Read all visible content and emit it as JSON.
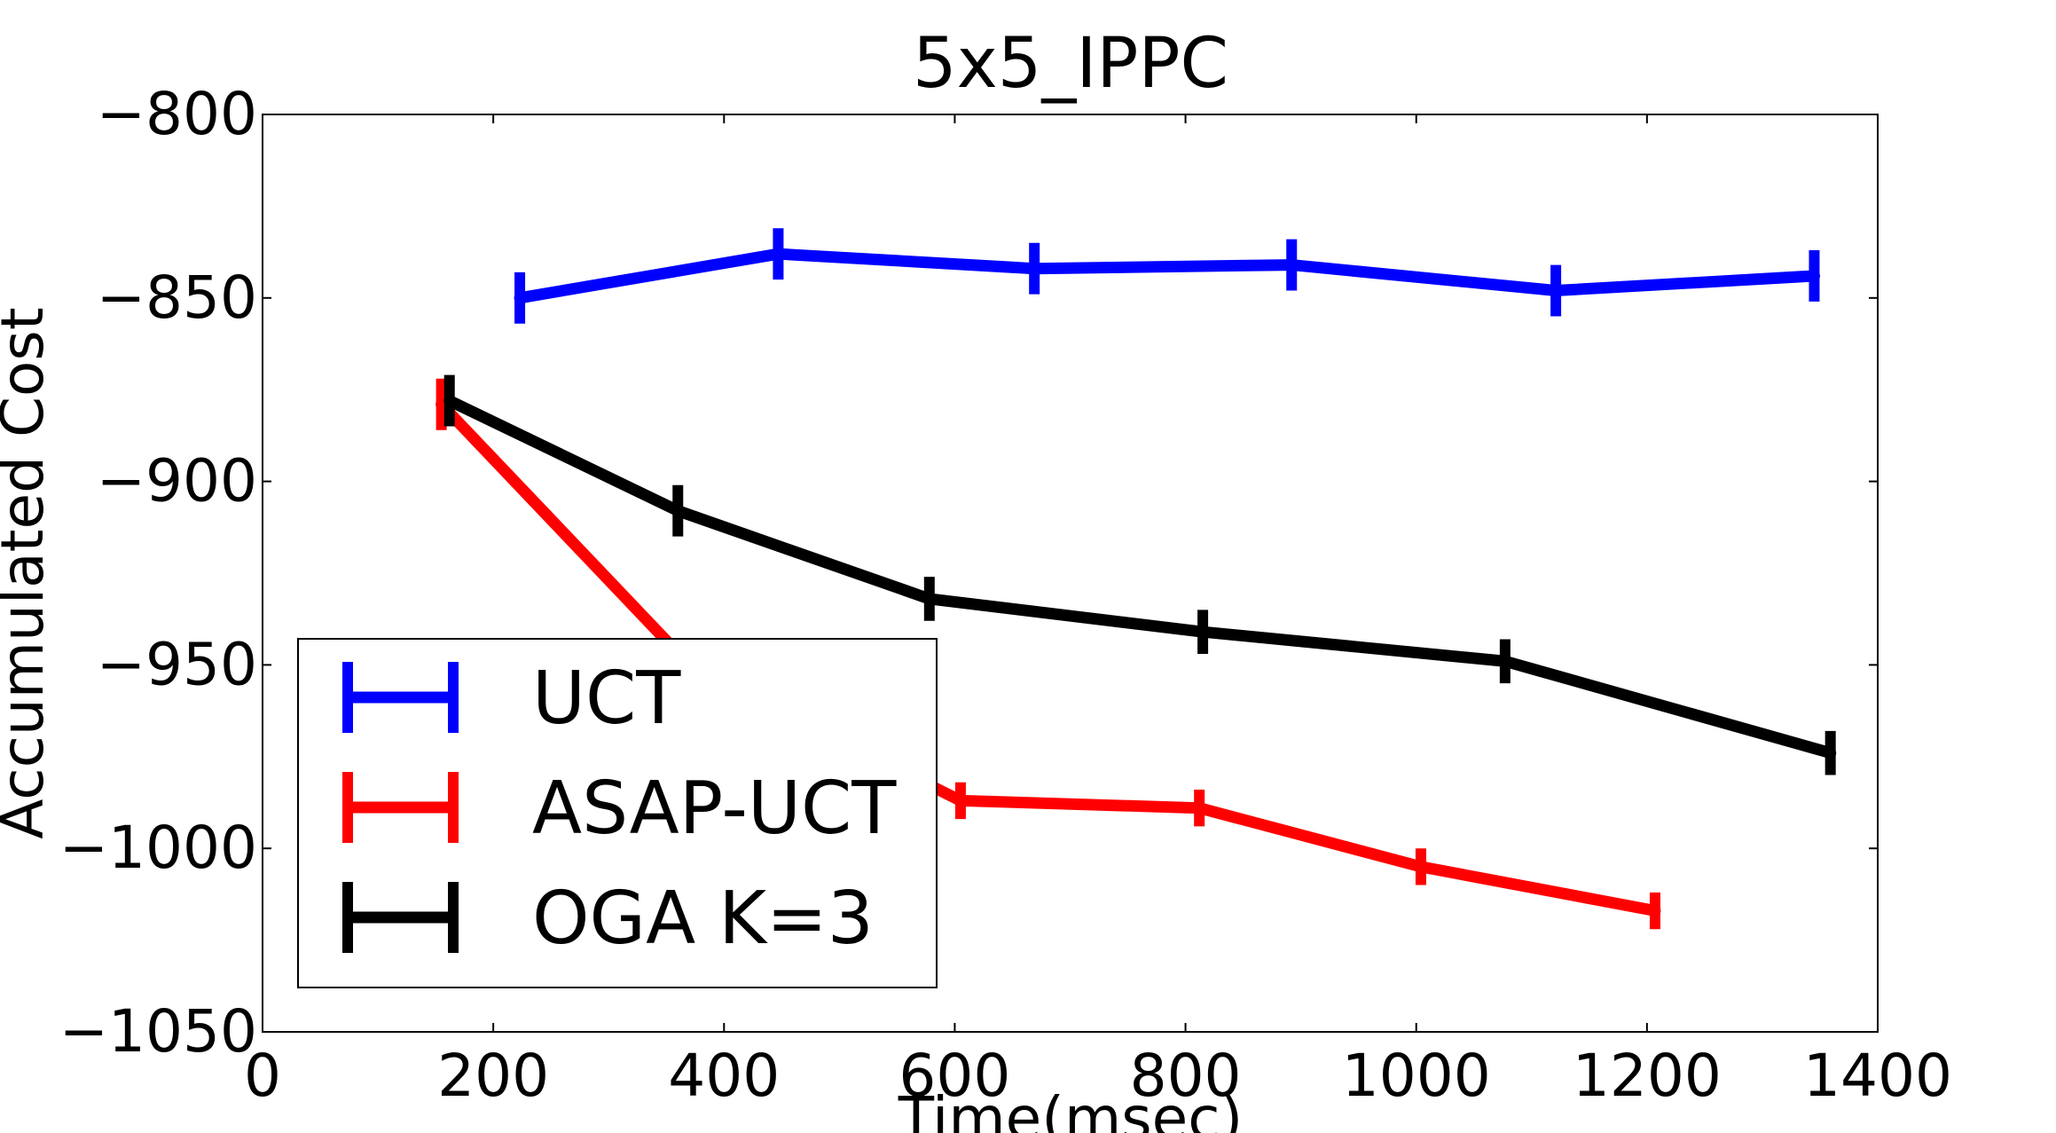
{
  "chart_data": {
    "type": "line",
    "title": "5x5_IPPC",
    "xlabel": "Time(msec)",
    "ylabel": "Accumulated Cost",
    "xlim": [
      0,
      1400
    ],
    "ylim": [
      -1050,
      -800
    ],
    "xticks": [
      0,
      200,
      400,
      600,
      800,
      1000,
      1200,
      1400
    ],
    "yticks": [
      -800,
      -850,
      -900,
      -950,
      -1000,
      -1050
    ],
    "grid": false,
    "legend_position": "lower-left",
    "error_bars": true,
    "series": [
      {
        "name": "UCT",
        "color": "#0000ff",
        "x": [
          223,
          447,
          669,
          892,
          1121,
          1345
        ],
        "y": [
          -850,
          -838,
          -842,
          -841,
          -848,
          -844
        ],
        "err": [
          7,
          7,
          7,
          7,
          7,
          7
        ]
      },
      {
        "name": "ASAP-UCT",
        "color": "#ff0000",
        "x": [
          155,
          370,
          605,
          812,
          1004,
          1207
        ],
        "y": [
          -879,
          -950,
          -987,
          -989,
          -1005,
          -1017
        ],
        "err": [
          7,
          7,
          5,
          5,
          5,
          5
        ]
      },
      {
        "name": "OGA K=3",
        "color": "#000000",
        "x": [
          162,
          360,
          578,
          815,
          1077,
          1359
        ],
        "y": [
          -878,
          -908,
          -932,
          -941,
          -949,
          -974
        ],
        "err": [
          7,
          7,
          6,
          6,
          6,
          6
        ]
      }
    ]
  }
}
